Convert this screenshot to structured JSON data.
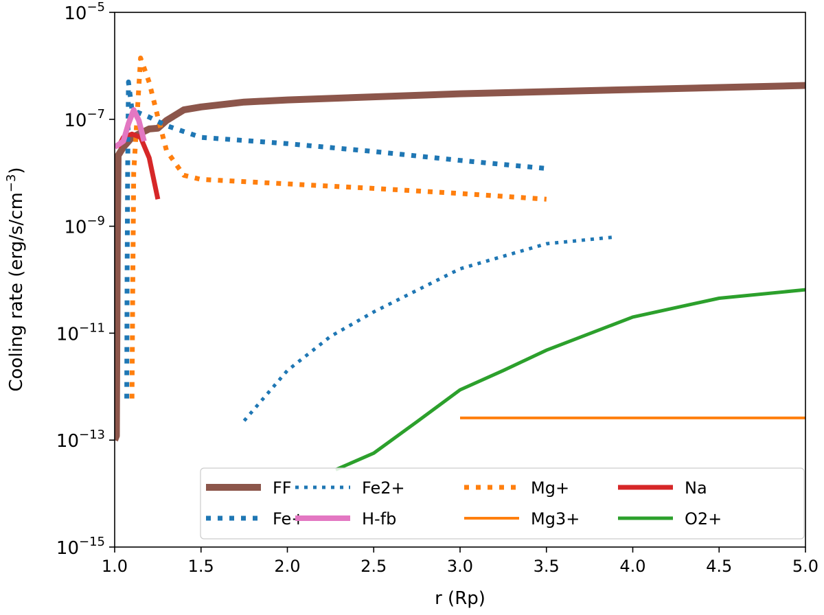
{
  "chart_data": {
    "type": "line",
    "title": "",
    "xlabel": "r (Rp)",
    "ylabel": "Cooling rate (erg/s/cm⁻³)",
    "ylabel_parts": {
      "main": "Cooling rate (erg/s/cm",
      "sup": "−3",
      "end": ")"
    },
    "xlim": [
      1.0,
      5.0
    ],
    "ylim": [
      1e-15,
      1e-05
    ],
    "yscale": "log",
    "grid": false,
    "legend_placement": "lower-right",
    "x_ticks": [
      "1.0",
      "1.5",
      "2.0",
      "2.5",
      "3.0",
      "3.5",
      "4.0",
      "4.5",
      "5.0"
    ],
    "y_ticks": [
      {
        "base": "10",
        "exp": "−15"
      },
      {
        "base": "10",
        "exp": "−13"
      },
      {
        "base": "10",
        "exp": "−11"
      },
      {
        "base": "10",
        "exp": "−9"
      },
      {
        "base": "10",
        "exp": "−7"
      },
      {
        "base": "10",
        "exp": "−5"
      }
    ],
    "series": [
      {
        "name": "FF",
        "color": "#8c564b",
        "style": "solid",
        "x": [
          1.0,
          1.01,
          1.015,
          1.02,
          1.05,
          1.1,
          1.2,
          1.25,
          1.3,
          1.4,
          1.5,
          1.75,
          2.0,
          3.0,
          4.0,
          5.0
        ],
        "y": [
          1e-13,
          1.2e-13,
          5e-10,
          2.1e-08,
          3e-08,
          4.6e-08,
          6.6e-08,
          6.8e-08,
          9.5e-08,
          1.5e-07,
          1.7e-07,
          2.1e-07,
          2.3e-07,
          3e-07,
          3.6e-07,
          4.3e-07
        ]
      },
      {
        "name": "Fe2+",
        "color": "#1f77b4",
        "style": "dotted-thin",
        "x": [
          1.75,
          2.0,
          2.25,
          2.5,
          3.0,
          3.5,
          3.9
        ],
        "y": [
          2.3e-13,
          2e-12,
          8.7e-12,
          2.5e-11,
          1.6e-10,
          4.7e-10,
          6.3e-10
        ]
      },
      {
        "name": "Mg+",
        "color": "#ff7f0e",
        "style": "dotted",
        "x": [
          1.1,
          1.105,
          1.11,
          1.15,
          1.2,
          1.25,
          1.3,
          1.4,
          1.5,
          2.0,
          2.5,
          3.0,
          3.5
        ],
        "y": [
          6e-13,
          1e-10,
          1e-08,
          1.4e-06,
          4.9e-07,
          1.1e-07,
          2.6e-08,
          9e-09,
          7.5e-09,
          6.2e-09,
          5.1e-09,
          4.1e-09,
          3.2e-09
        ]
      },
      {
        "name": "Na",
        "color": "#d62728",
        "style": "solid",
        "x": [
          1.02,
          1.05,
          1.1,
          1.15,
          1.2,
          1.25
        ],
        "y": [
          3e-08,
          4.6e-08,
          5.3e-08,
          4.6e-08,
          1.9e-08,
          3.2e-09
        ]
      },
      {
        "name": "Fe+",
        "color": "#1f77b4",
        "style": "dotted",
        "x": [
          1.07,
          1.072,
          1.075,
          1.08,
          1.1,
          1.2,
          1.3,
          1.5,
          2.0,
          2.5,
          3.0,
          3.5
        ],
        "y": [
          6e-13,
          1e-10,
          1e-08,
          5e-07,
          1.5e-07,
          1.1e-07,
          7.6e-08,
          4.6e-08,
          3.5e-08,
          2.5e-08,
          1.7e-08,
          1.2e-08
        ]
      },
      {
        "name": "H-fb",
        "color": "#e377c2",
        "style": "solid",
        "x": [
          1.0,
          1.05,
          1.08,
          1.11,
          1.14,
          1.17
        ],
        "y": [
          3e-08,
          3.9e-08,
          8.3e-08,
          1.5e-07,
          9.5e-08,
          3.9e-08
        ]
      },
      {
        "name": "Mg3+",
        "color": "#ff7f0e",
        "style": "solid-thin",
        "x": [
          3.0,
          5.0
        ],
        "y": [
          2.6e-13,
          2.6e-13
        ]
      },
      {
        "name": "O2+",
        "color": "#2ca02c",
        "style": "solid-mid",
        "x": [
          2.28,
          2.5,
          2.75,
          3.0,
          3.25,
          3.5,
          4.0,
          4.5,
          5.0
        ],
        "y": [
          2.8e-14,
          5.7e-14,
          2.2e-13,
          8.7e-13,
          2e-12,
          4.8e-12,
          2e-11,
          4.5e-11,
          6.5e-11
        ]
      }
    ]
  }
}
